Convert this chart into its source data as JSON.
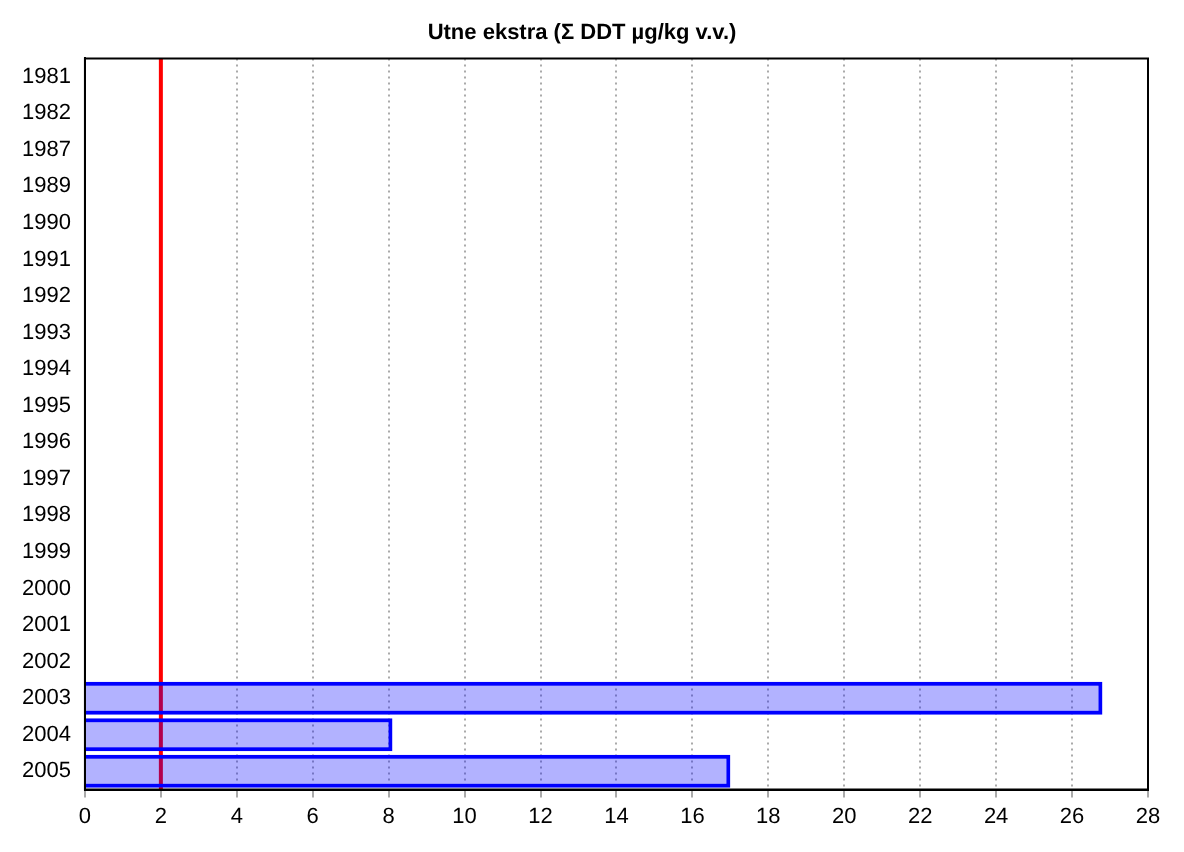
{
  "chart_data": {
    "type": "bar",
    "orientation": "horizontal",
    "title": "Utne ekstra (Σ DDT µg/kg v.v.)",
    "categories": [
      "1981",
      "1982",
      "1987",
      "1989",
      "1990",
      "1991",
      "1992",
      "1993",
      "1994",
      "1995",
      "1996",
      "1997",
      "1998",
      "1999",
      "2000",
      "2001",
      "2002",
      "2003",
      "2004",
      "2005"
    ],
    "values": [
      null,
      null,
      null,
      null,
      null,
      null,
      null,
      null,
      null,
      null,
      null,
      null,
      null,
      null,
      null,
      null,
      null,
      26.8,
      8.1,
      17.0
    ],
    "color": "#0000ff",
    "xlim": [
      0,
      28
    ],
    "xticks": [
      0,
      2,
      4,
      6,
      8,
      10,
      12,
      14,
      16,
      18,
      20,
      22,
      24,
      26,
      28
    ],
    "grid": "x",
    "legend": false,
    "ref_lines": [
      {
        "axis": "x",
        "value": 2,
        "color": "#ff0000"
      }
    ]
  }
}
